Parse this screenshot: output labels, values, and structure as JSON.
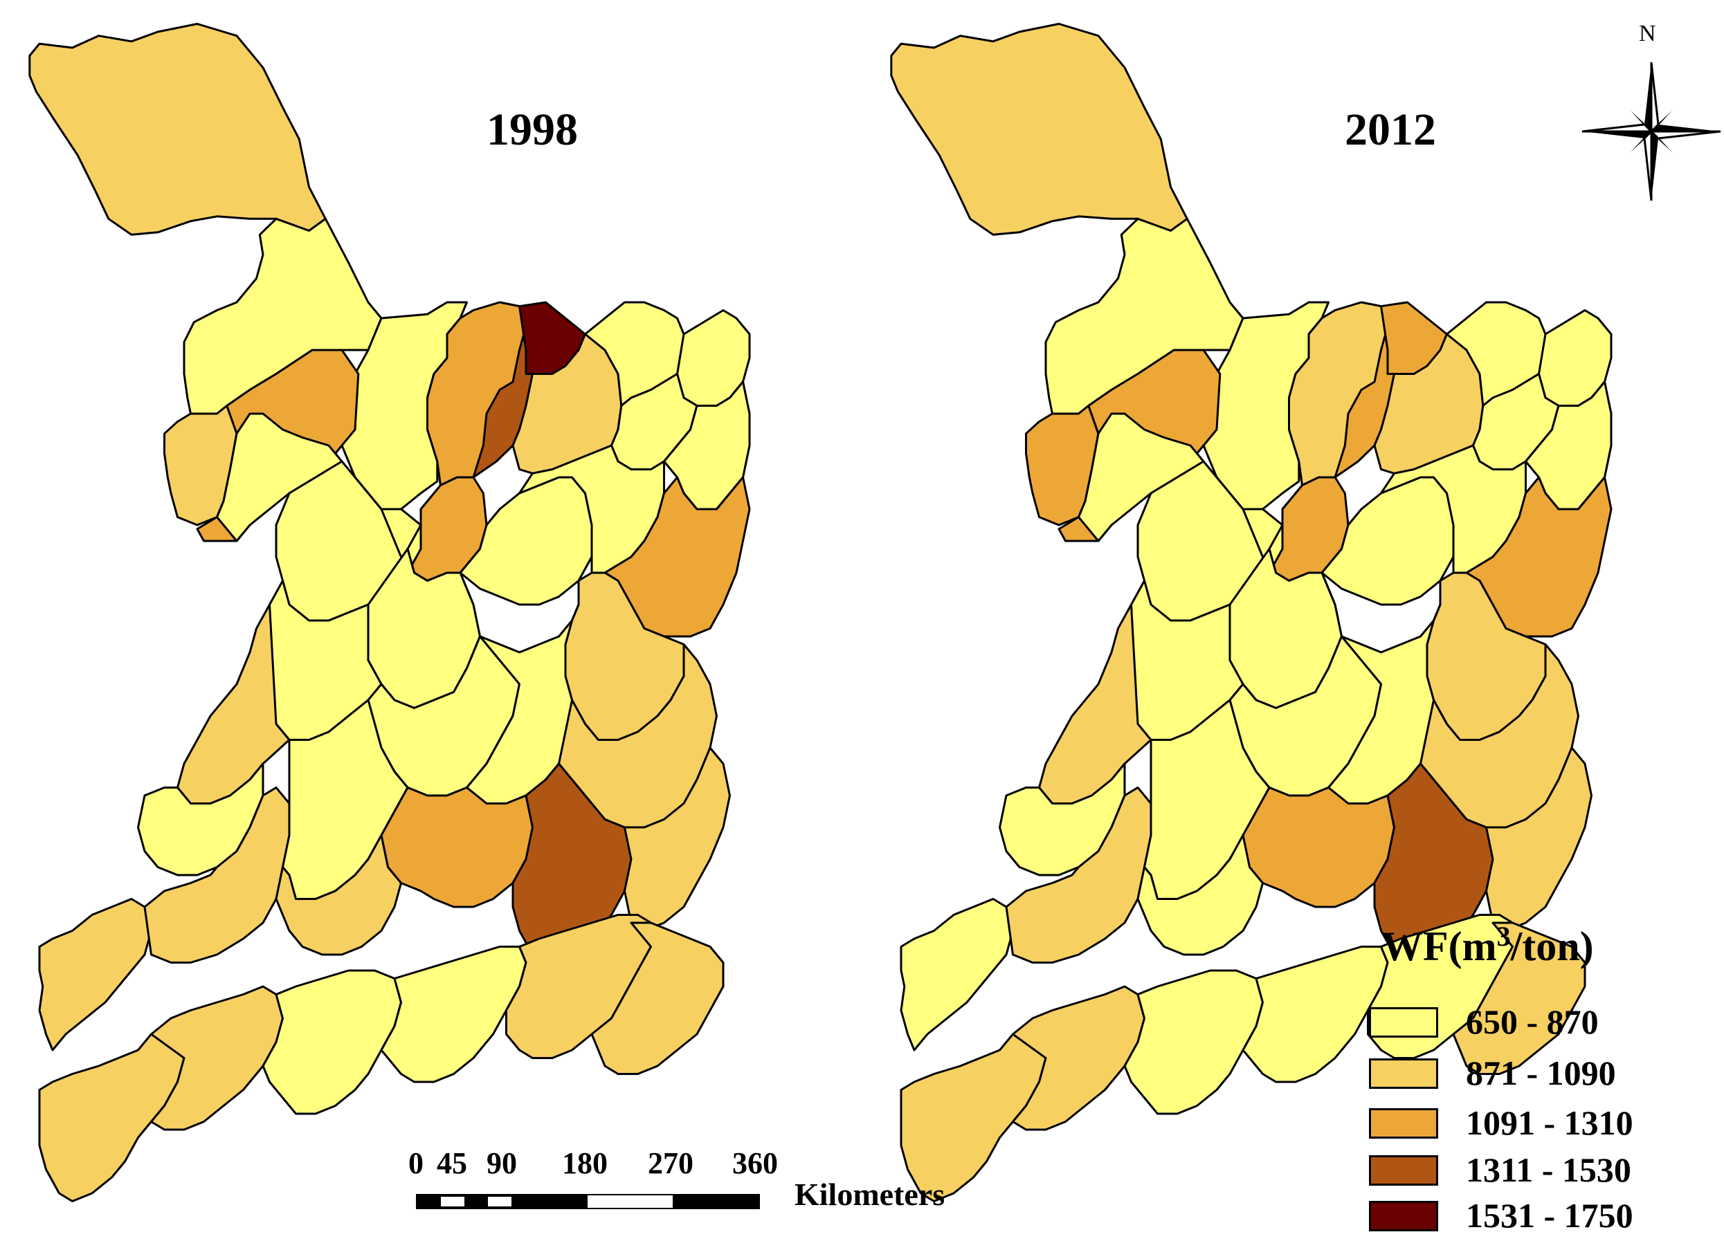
{
  "maps": [
    {
      "title": "1998",
      "classes": [
        1,
        0,
        0,
        1,
        2,
        3,
        1,
        0,
        2,
        4,
        2,
        0,
        0,
        0,
        0,
        0,
        0,
        0,
        0,
        0,
        2,
        1,
        0,
        0,
        0,
        0,
        1,
        1,
        0,
        1,
        1,
        0,
        2,
        3,
        1,
        1,
        1,
        1,
        0,
        0,
        1,
        1
      ]
    },
    {
      "title": "2012",
      "classes": [
        1,
        0,
        0,
        2,
        2,
        2,
        1,
        0,
        1,
        2,
        2,
        0,
        0,
        0,
        0,
        0,
        0,
        0,
        0,
        0,
        2,
        1,
        0,
        0,
        0,
        0,
        1,
        1,
        0,
        0,
        1,
        0,
        2,
        3,
        0,
        1,
        1,
        1,
        0,
        0,
        0,
        1
      ]
    }
  ],
  "north_label": "N",
  "legend": {
    "title": "WF(m",
    "title_sup": "3",
    "title_tail": "/ton)",
    "items": [
      {
        "label": "650 - 870",
        "color": "#ffff80"
      },
      {
        "label": "871 - 1090",
        "color": "#f7d062"
      },
      {
        "label": "1091 - 1310",
        "color": "#eda737"
      },
      {
        "label": "1311 - 1530",
        "color": "#b05614"
      },
      {
        "label": "1531 - 1750",
        "color": "#6b0000"
      }
    ]
  },
  "scale_bar": {
    "ticks": [
      "0",
      "45",
      "90",
      "180",
      "270",
      "360"
    ],
    "unit": "Kilometers"
  }
}
